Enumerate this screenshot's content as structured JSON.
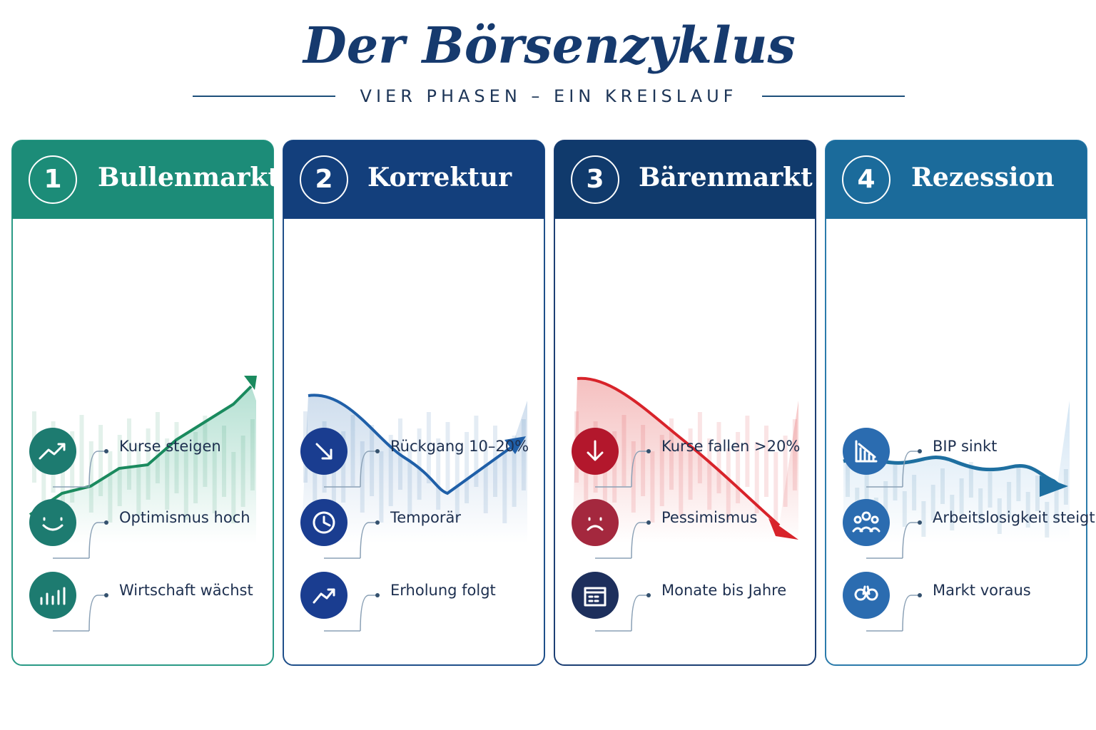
{
  "header": {
    "title": "Der Börsenzyklus",
    "subtitle": "VIER PHASEN – EIN KREISLAUF"
  },
  "phases": [
    {
      "number": "1",
      "name": "Bullenmarkt",
      "items": [
        "Kurse steigen",
        "Optimismus hoch",
        "Wirtschaft wächst"
      ]
    },
    {
      "number": "2",
      "name": "Korrektur",
      "items": [
        "Rückgang 10–20%",
        "Temporär",
        "Erholung folgt"
      ]
    },
    {
      "number": "3",
      "name": "Bärenmarkt",
      "items": [
        "Kurse fallen >20%",
        "Pessimismus",
        "Monate bis Jahre"
      ]
    },
    {
      "number": "4",
      "name": "Rezession",
      "items": [
        "BIP sinkt",
        "Arbeitslosigkeit steigt",
        "Markt voraus"
      ]
    }
  ]
}
